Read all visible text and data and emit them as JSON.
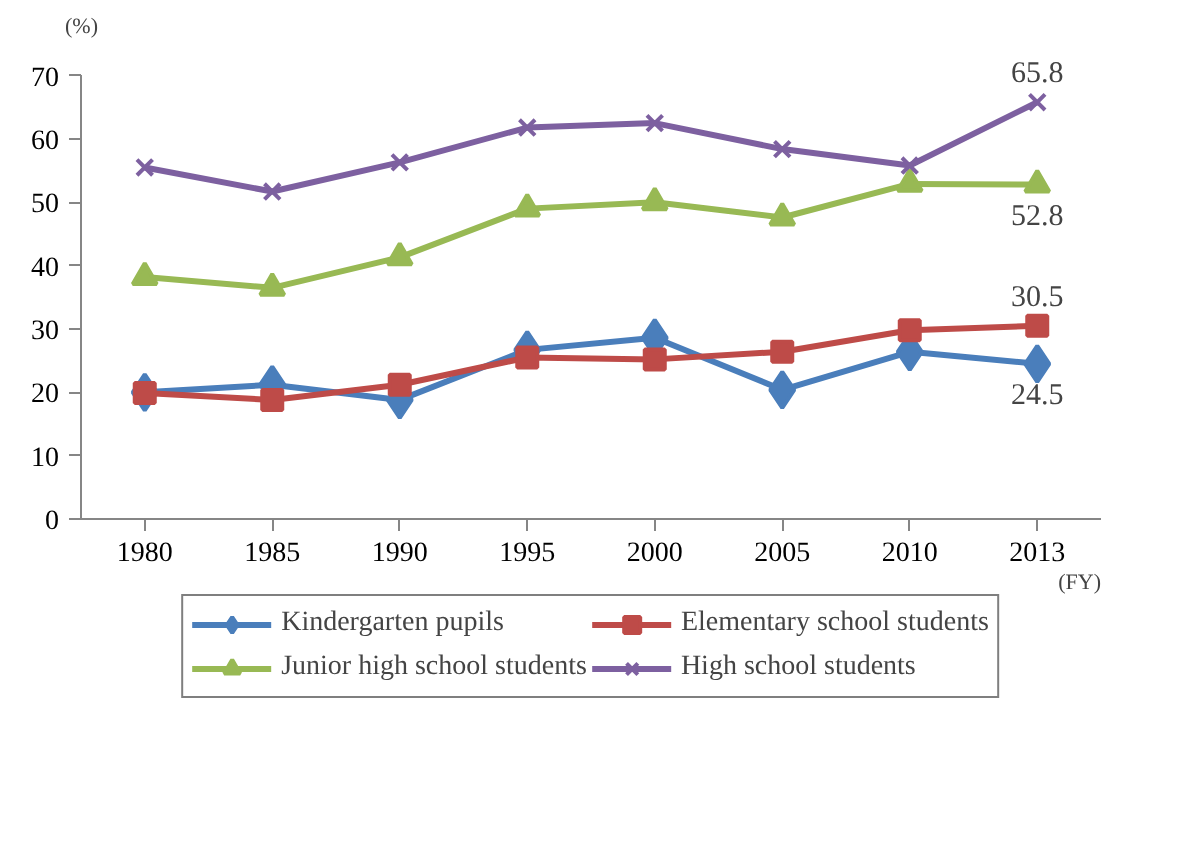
{
  "chart_data": {
    "type": "line",
    "ylabel": "(%)",
    "xlabel": "(FY)",
    "categories": [
      "1980",
      "1985",
      "1990",
      "1995",
      "2000",
      "2005",
      "2010",
      "2013"
    ],
    "ylim": [
      0,
      70
    ],
    "yticks": [
      0,
      10,
      20,
      30,
      40,
      50,
      60,
      70
    ],
    "grid": false,
    "legend": "bottom",
    "series": [
      {
        "name": "Kindergarten pupils",
        "color": "#4a7ebb",
        "marker": "diamond",
        "values": [
          20.0,
          21.2,
          18.8,
          26.7,
          28.6,
          20.4,
          26.4,
          24.5
        ]
      },
      {
        "name": "Elementary school students",
        "color": "#be4b48",
        "marker": "square",
        "values": [
          19.9,
          18.8,
          21.2,
          25.5,
          25.2,
          26.4,
          29.8,
          30.5
        ]
      },
      {
        "name": "Junior high school students",
        "color": "#98b954",
        "marker": "triangle",
        "values": [
          38.2,
          36.5,
          41.3,
          49.0,
          50.0,
          47.6,
          52.9,
          52.8
        ]
      },
      {
        "name": "High school students",
        "color": "#7d60a0",
        "marker": "x",
        "values": [
          55.5,
          51.7,
          56.3,
          61.8,
          62.5,
          58.4,
          55.8,
          65.8
        ]
      }
    ],
    "annotations": [
      {
        "text": "65.8",
        "x": "2013",
        "y": 65.8
      },
      {
        "text": "52.8",
        "x": "2013",
        "y": 52.8
      },
      {
        "text": "30.5",
        "x": "2013",
        "y": 30.5
      },
      {
        "text": "24.5",
        "x": "2013",
        "y": 24.5
      }
    ]
  }
}
